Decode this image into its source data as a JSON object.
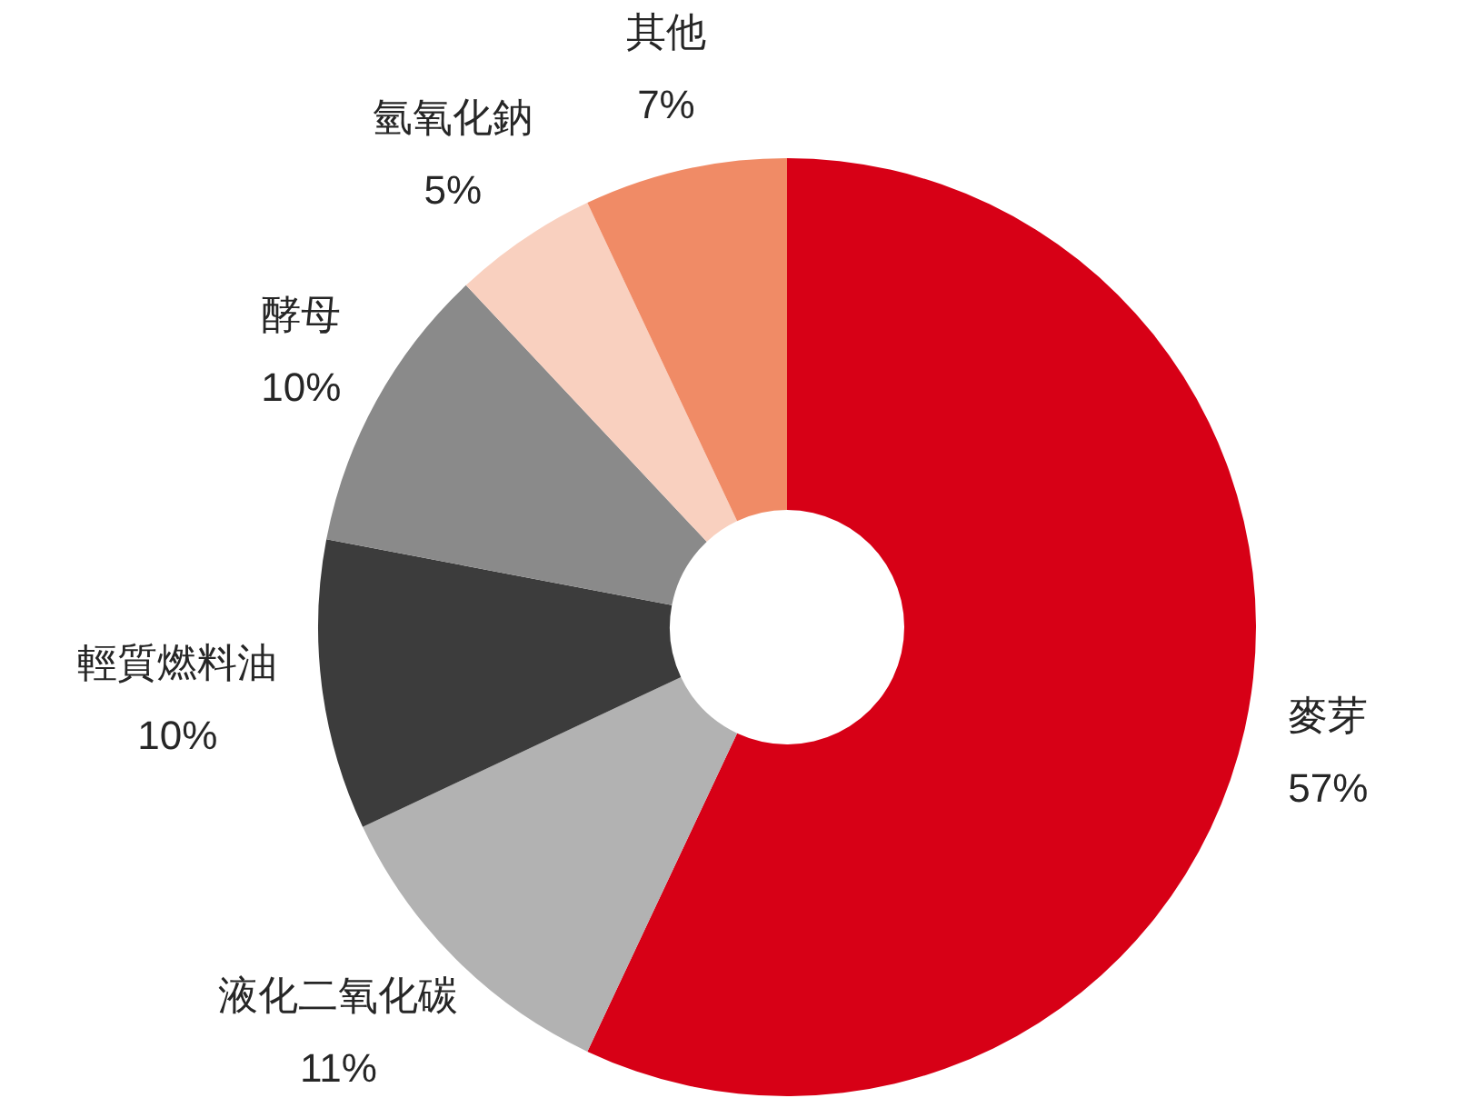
{
  "chart_data": {
    "type": "donut",
    "categories": [
      "麥芽",
      "液化二氧化碳",
      "輕質燃料油",
      "酵母",
      "氫氧化鈉",
      "其他"
    ],
    "values": [
      57,
      11,
      10,
      10,
      5,
      7
    ],
    "colors": [
      "#d70016",
      "#b2b2b2",
      "#3c3c3c",
      "#8a8a8a",
      "#f9d0bf",
      "#f08b66"
    ],
    "value_labels": [
      "57%",
      "11%",
      "10%",
      "10%",
      "5%",
      "7%"
    ]
  }
}
